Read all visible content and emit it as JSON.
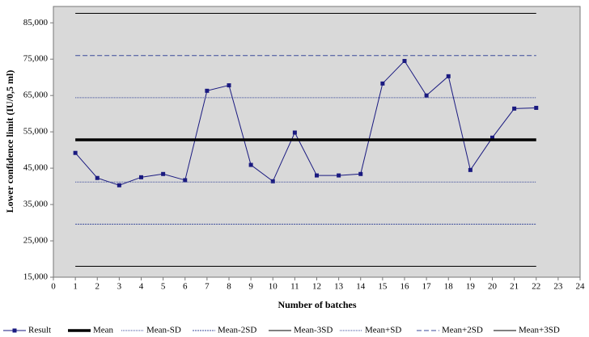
{
  "chart_data": {
    "type": "line",
    "x_label": "Number of batches",
    "y_label": "Lower confidence limit (IU/0,5 ml)",
    "xlim": [
      0,
      24
    ],
    "xticks": [
      0,
      1,
      2,
      3,
      4,
      5,
      6,
      7,
      8,
      9,
      10,
      11,
      12,
      13,
      14,
      15,
      16,
      17,
      18,
      19,
      20,
      21,
      22,
      23,
      24
    ],
    "ylim": [
      15000,
      89500
    ],
    "yticks": [
      {
        "value": 15000,
        "label": "15,000"
      },
      {
        "value": 25000,
        "label": "25,000"
      },
      {
        "value": 35000,
        "label": "35,000"
      },
      {
        "value": 45000,
        "label": "45,000"
      },
      {
        "value": 55000,
        "label": "55,000"
      },
      {
        "value": 65000,
        "label": "65,000"
      },
      {
        "value": 75000,
        "label": "75,000"
      },
      {
        "value": 85000,
        "label": "85,000"
      }
    ],
    "legend": "bottom",
    "series": [
      {
        "name": "Result",
        "color": "#1a1a80",
        "width": 1,
        "dash": "none",
        "marker": "square",
        "x": [
          1,
          2,
          3,
          4,
          5,
          6,
          7,
          8,
          9,
          10,
          11,
          12,
          13,
          14,
          15,
          16,
          17,
          18,
          19,
          20,
          21,
          22
        ],
        "values": [
          49200,
          42300,
          40300,
          42500,
          43400,
          41700,
          66300,
          67800,
          45900,
          41400,
          54800,
          43000,
          43000,
          43400,
          68300,
          74500,
          65000,
          70300,
          44500,
          53400,
          61400,
          61600
        ]
      },
      {
        "name": "Mean",
        "color": "#000000",
        "width": 3.5,
        "dash": "none",
        "x": [
          1,
          22
        ],
        "values": [
          52800,
          52800
        ]
      },
      {
        "name": "Mean-SD",
        "color": "#3a4a9a",
        "width": 1,
        "dash": "1,1",
        "x": [
          1,
          22
        ],
        "values": [
          41200,
          41200
        ]
      },
      {
        "name": "Mean-2SD",
        "color": "#3a4a9a",
        "width": 1,
        "dash": "2,1",
        "x": [
          1,
          22
        ],
        "values": [
          29600,
          29600
        ]
      },
      {
        "name": "Mean-3SD",
        "color": "#000000",
        "width": 1,
        "dash": "none",
        "x": [
          1,
          22
        ],
        "values": [
          18000,
          18000
        ]
      },
      {
        "name": "Mean+SD",
        "color": "#3a4a9a",
        "width": 1,
        "dash": "1,1",
        "x": [
          1,
          22
        ],
        "values": [
          64400,
          64400
        ]
      },
      {
        "name": "Mean+2SD",
        "color": "#3a4a9a",
        "width": 1,
        "dash": "6,3",
        "x": [
          1,
          22
        ],
        "values": [
          76000,
          76000
        ]
      },
      {
        "name": "Mean+3SD",
        "color": "#000000",
        "width": 1,
        "dash": "none",
        "x": [
          1,
          22
        ],
        "values": [
          87600,
          87600
        ]
      }
    ]
  }
}
